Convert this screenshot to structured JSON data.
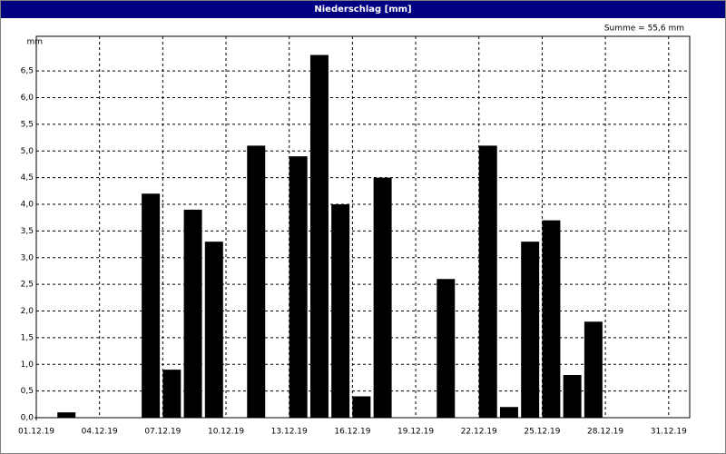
{
  "title": "Niederschlag [mm]",
  "chart_data": {
    "type": "bar",
    "y_label": "mm",
    "annotation": "Summe = 55,6 mm",
    "x": [
      2,
      6,
      7,
      8,
      9,
      11,
      13,
      14,
      15,
      16,
      17,
      20,
      22,
      23,
      24,
      25,
      26,
      27
    ],
    "values": [
      0.1,
      4.2,
      0.9,
      3.9,
      3.3,
      5.1,
      4.9,
      6.8,
      4.0,
      0.4,
      4.5,
      2.6,
      5.1,
      0.2,
      3.3,
      3.7,
      0.8,
      1.8
    ],
    "color": "#000000",
    "xlim": [
      1,
      32
    ],
    "xticks": [
      {
        "value": 1,
        "label": "01.12.19"
      },
      {
        "value": 4,
        "label": "04.12.19"
      },
      {
        "value": 7,
        "label": "07.12.19"
      },
      {
        "value": 10,
        "label": "10.12.19"
      },
      {
        "value": 13,
        "label": "13.12.19"
      },
      {
        "value": 16,
        "label": "16.12.19"
      },
      {
        "value": 19,
        "label": "19.12.19"
      },
      {
        "value": 22,
        "label": "22.12.19"
      },
      {
        "value": 25,
        "label": "25.12.19"
      },
      {
        "value": 28,
        "label": "28.12.19"
      },
      {
        "value": 31,
        "label": "31.12.19"
      }
    ],
    "ylim": [
      0,
      7.15
    ],
    "yticks": [
      {
        "value": 0,
        "label": "0,0"
      },
      {
        "value": 0.5,
        "label": "0,5"
      },
      {
        "value": 1,
        "label": "1,0"
      },
      {
        "value": 1.5,
        "label": "1,5"
      },
      {
        "value": 2,
        "label": "2,0"
      },
      {
        "value": 2.5,
        "label": "2,5"
      },
      {
        "value": 3,
        "label": "3,0"
      },
      {
        "value": 3.5,
        "label": "3,5"
      },
      {
        "value": 4,
        "label": "4,0"
      },
      {
        "value": 4.5,
        "label": "4,5"
      },
      {
        "value": 5,
        "label": "5,0"
      },
      {
        "value": 5.5,
        "label": "5,5"
      },
      {
        "value": 6,
        "label": "6,0"
      },
      {
        "value": 6.5,
        "label": "6,5"
      }
    ],
    "grid": true
  }
}
